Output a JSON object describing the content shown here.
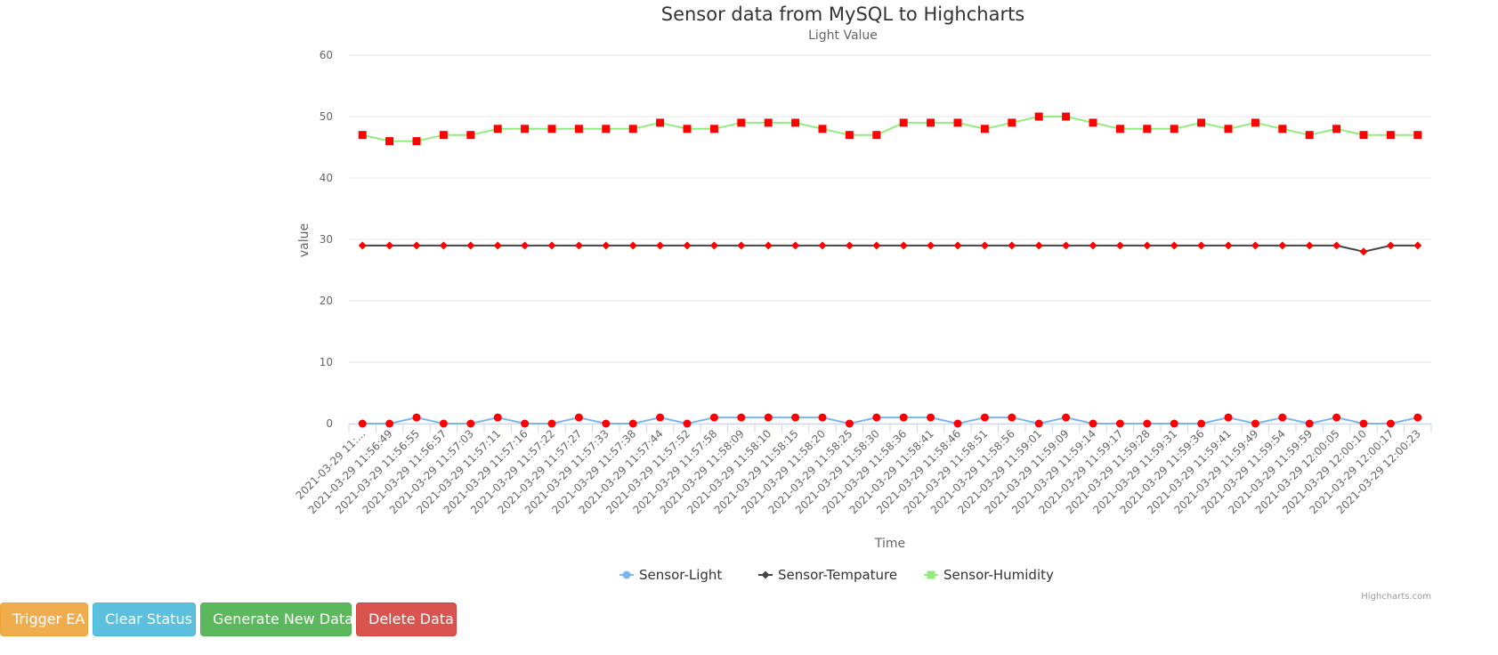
{
  "chart_data": {
    "type": "line",
    "title": "Sensor data from MySQL to Highcharts",
    "subtitle": "Light Value",
    "xlabel": "Time",
    "ylabel": "value",
    "ylim": [
      0,
      60
    ],
    "yticks": [
      0,
      10,
      20,
      30,
      40,
      50,
      60
    ],
    "grid": true,
    "legend_position": "bottom-center",
    "credits": "Highcharts.com",
    "categories": [
      "2021-03-29 11:...",
      "2021-03-29 11:56:49",
      "2021-03-29 11:56:55",
      "2021-03-29 11:56:57",
      "2021-03-29 11:57:03",
      "2021-03-29 11:57:11",
      "2021-03-29 11:57:16",
      "2021-03-29 11:57:22",
      "2021-03-29 11:57:27",
      "2021-03-29 11:57:33",
      "2021-03-29 11:57:38",
      "2021-03-29 11:57:44",
      "2021-03-29 11:57:52",
      "2021-03-29 11:57:58",
      "2021-03-29 11:58:09",
      "2021-03-29 11:58:10",
      "2021-03-29 11:58:15",
      "2021-03-29 11:58:20",
      "2021-03-29 11:58:25",
      "2021-03-29 11:58:30",
      "2021-03-29 11:58:36",
      "2021-03-29 11:58:41",
      "2021-03-29 11:58:46",
      "2021-03-29 11:58:51",
      "2021-03-29 11:58:56",
      "2021-03-29 11:59:01",
      "2021-03-29 11:59:09",
      "2021-03-29 11:59:14",
      "2021-03-29 11:59:17",
      "2021-03-29 11:59:28",
      "2021-03-29 11:59:31",
      "2021-03-29 11:59:36",
      "2021-03-29 11:59:41",
      "2021-03-29 11:59:49",
      "2021-03-29 11:59:54",
      "2021-03-29 11:59:59",
      "2021-03-29 12:00:05",
      "2021-03-29 12:00:10",
      "2021-03-29 12:00:17",
      "2021-03-29 12:00:23"
    ],
    "series": [
      {
        "name": "Sensor-Light",
        "color": "#7cb5ec",
        "legend_marker": "circle",
        "point_marker": "circle",
        "values": [
          0,
          0,
          1,
          0,
          0,
          1,
          0,
          0,
          1,
          0,
          0,
          1,
          0,
          1,
          1,
          1,
          1,
          1,
          0,
          1,
          1,
          1,
          0,
          1,
          1,
          0,
          1,
          0,
          0,
          0,
          0,
          0,
          1,
          0,
          1,
          0,
          1,
          0,
          0,
          1
        ]
      },
      {
        "name": "Sensor-Tempature",
        "color": "#434348",
        "legend_marker": "diamond",
        "point_marker": "diamond",
        "values": [
          29,
          29,
          29,
          29,
          29,
          29,
          29,
          29,
          29,
          29,
          29,
          29,
          29,
          29,
          29,
          29,
          29,
          29,
          29,
          29,
          29,
          29,
          29,
          29,
          29,
          29,
          29,
          29,
          29,
          29,
          29,
          29,
          29,
          29,
          29,
          29,
          29,
          28,
          29,
          29
        ]
      },
      {
        "name": "Sensor-Humidity",
        "color": "#90ed7d",
        "legend_marker": "square",
        "point_marker": "square",
        "values": [
          47,
          46,
          46,
          47,
          47,
          48,
          48,
          48,
          48,
          48,
          48,
          49,
          48,
          48,
          49,
          49,
          49,
          48,
          47,
          47,
          49,
          49,
          49,
          48,
          49,
          50,
          50,
          49,
          48,
          48,
          48,
          49,
          48,
          49,
          48,
          47,
          48,
          47,
          47,
          47
        ]
      }
    ],
    "point_marker_color": "#ff0000"
  },
  "buttons": {
    "trigger": "Trigger EA",
    "clear": "Clear Status",
    "generate": "Generate New Data",
    "delete": "Delete Data"
  }
}
